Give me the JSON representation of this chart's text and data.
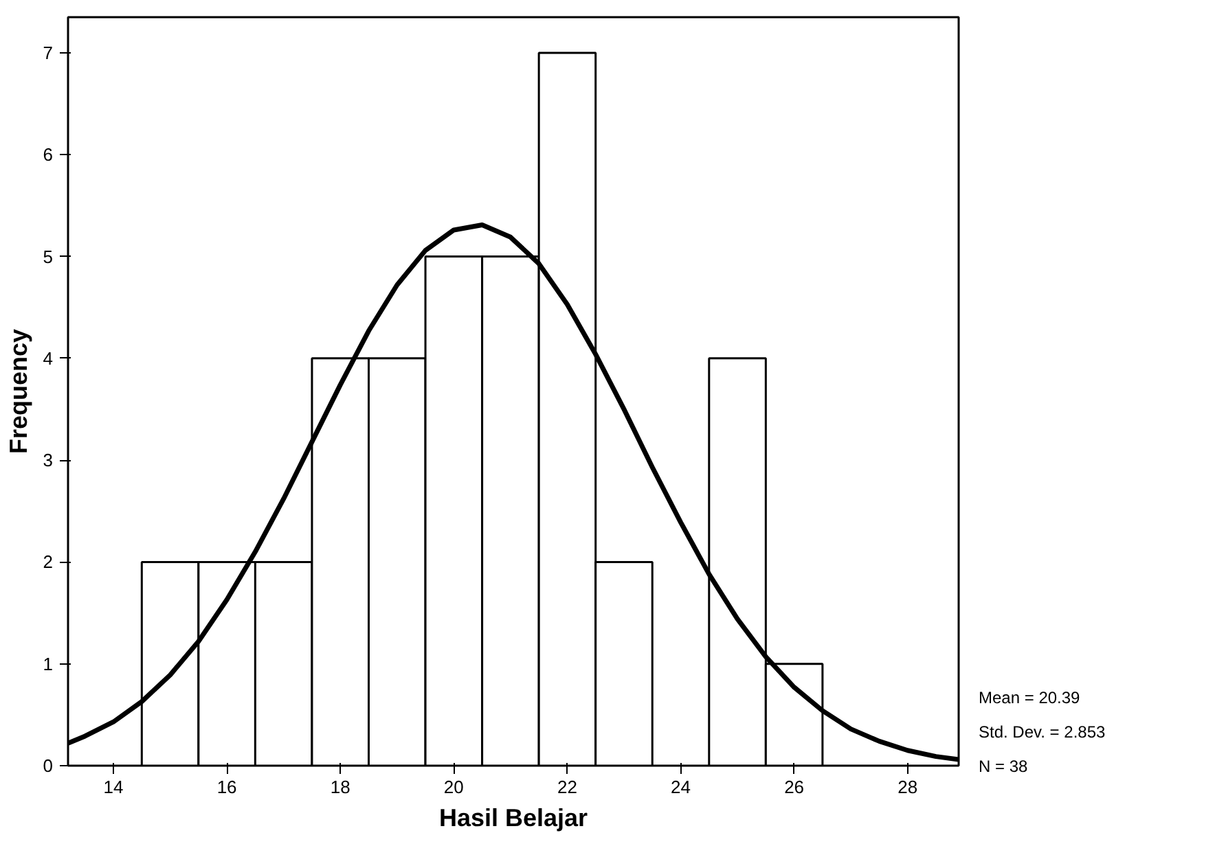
{
  "chart_data": {
    "type": "histogram",
    "xlabel": "Hasil Belajar",
    "ylabel": "Frequency",
    "bins": [
      14.5,
      15.5,
      16.5,
      17.5,
      18.5,
      19.5,
      20.5,
      21.5,
      22.5,
      23.5,
      24.5,
      25.5,
      26.5
    ],
    "values": [
      2,
      2,
      2,
      4,
      4,
      5,
      5,
      7,
      2,
      0,
      4,
      1
    ],
    "color": "#ffffff",
    "series": [
      {
        "type": "line",
        "color": "#000000",
        "x": [
          13.2,
          13.5,
          14,
          14.5,
          15,
          15.5,
          16,
          16.5,
          17,
          17.5,
          18,
          18.5,
          19,
          19.5,
          20,
          20.5,
          21,
          21.5,
          22,
          22.5,
          23,
          23.5,
          24,
          24.5,
          25,
          25.5,
          26,
          26.5,
          27,
          27.5,
          28,
          28.5,
          28.9
        ],
        "values": [
          0.22,
          0.29,
          0.43,
          0.63,
          0.89,
          1.22,
          1.63,
          2.1,
          2.62,
          3.18,
          3.74,
          4.27,
          4.72,
          5.06,
          5.26,
          5.31,
          5.19,
          4.93,
          4.53,
          4.04,
          3.5,
          2.93,
          2.39,
          1.88,
          1.44,
          1.07,
          0.77,
          0.54,
          0.36,
          0.24,
          0.15,
          0.09,
          0.06
        ]
      }
    ],
    "xlim": [
      13.2,
      28.9
    ],
    "xticks": [
      14,
      16,
      18,
      20,
      22,
      24,
      26,
      28
    ],
    "ylim": [
      0,
      7.35
    ],
    "yticks": [
      0,
      1,
      2,
      3,
      4,
      5,
      6,
      7
    ],
    "grid": false,
    "annotations": [
      "Mean = 20.39",
      "Std. Dev. = 2.853",
      "N = 38"
    ]
  }
}
